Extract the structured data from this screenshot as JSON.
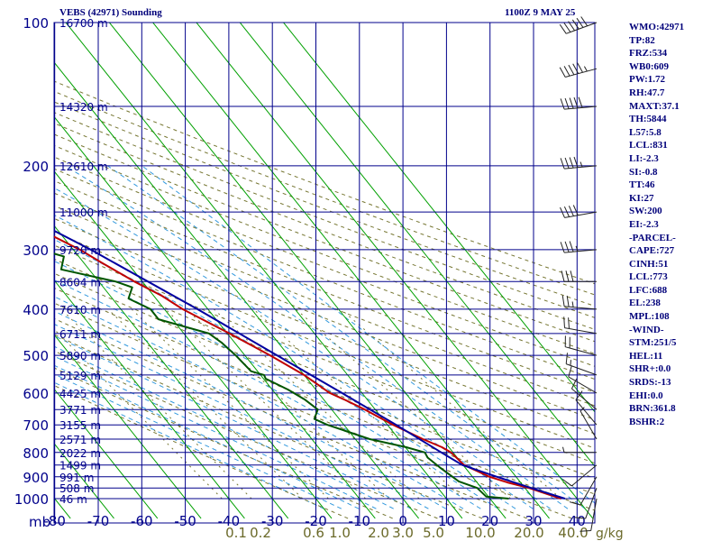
{
  "header": {
    "station": "VEBS (42971) Sounding",
    "time": "1100Z  9 MAY 25"
  },
  "indices": [
    "WMO:42971",
    "TP:82",
    "FRZ:534",
    "WB0:609",
    "PW:1.72",
    "RH:47.7",
    "MAXT:37.1",
    "TH:5844",
    "L57:5.8",
    "LCL:831",
    "LI:-2.3",
    "SI:-0.8",
    "TT:46",
    "KI:27",
    "SW:200",
    "EI:-2.3",
    "-PARCEL-",
    "CAPE:727",
    "CINH:51",
    "LCL:773",
    "LFC:688",
    "EL:238",
    "MPL:108",
    "-WIND-",
    "STM:251/5",
    "HEL:11",
    "SHR+:0.0",
    "SRDS:-13",
    "EHI:0.0",
    "BRN:361.8",
    "BSHR:2"
  ],
  "chart_data": {
    "type": "line",
    "title": "VEBS (42971) Sounding",
    "subtitle": "1100Z  9 MAY 25",
    "xlabel": "",
    "ylabel": "mb",
    "x_ticks": [
      "-80",
      "-70",
      "-60",
      "-50",
      "-40",
      "-30",
      "-20",
      "-10",
      "0",
      "10",
      "20",
      "30",
      "40"
    ],
    "y_ticks": [
      "100",
      "200",
      "300",
      "400",
      "500",
      "600",
      "700",
      "800",
      "900",
      "1000"
    ],
    "height_labels": [
      {
        "p": 100,
        "label": "16700 m"
      },
      {
        "p": 150,
        "label": "14320 m"
      },
      {
        "p": 200,
        "label": "12610 m"
      },
      {
        "p": 250,
        "label": "11000 m"
      },
      {
        "p": 300,
        "label": "9720 m"
      },
      {
        "p": 350,
        "label": "8604 m"
      },
      {
        "p": 400,
        "label": "7610 m"
      },
      {
        "p": 450,
        "label": "6711 m"
      },
      {
        "p": 500,
        "label": "5890 m"
      },
      {
        "p": 550,
        "label": "5129 m"
      },
      {
        "p": 600,
        "label": "4425 m"
      },
      {
        "p": 650,
        "label": "3771 m"
      },
      {
        "p": 700,
        "label": "3155 m"
      },
      {
        "p": 750,
        "label": "2571 m"
      },
      {
        "p": 800,
        "label": "2022 m"
      },
      {
        "p": 850,
        "label": "1499 m"
      },
      {
        "p": 900,
        "label": "991 m"
      },
      {
        "p": 950,
        "label": "508 m"
      },
      {
        "p": 1000,
        "label": "46 m"
      }
    ],
    "mixing_ratio_labels": [
      "0.1",
      "0.2",
      "0.6",
      "1.0",
      "2.0",
      "3.0",
      "5.0",
      "10.0",
      "20.0",
      "40.0"
    ],
    "mixing_ratio_unit": "g/kg",
    "series": [
      {
        "role": "temperature",
        "color": "#c00000",
        "points": [
          [
            1000,
            36.3
          ],
          [
            950,
            30.9
          ],
          [
            925,
            27.0
          ],
          [
            900,
            23.9
          ],
          [
            850,
            20.2
          ],
          [
            800,
            19.5
          ],
          [
            780,
            18.4
          ],
          [
            750,
            15.5
          ],
          [
            700,
            11.3
          ],
          [
            650,
            7.6
          ],
          [
            620,
            4.8
          ],
          [
            600,
            2.6
          ],
          [
            580,
            1.6
          ],
          [
            550,
            0.0
          ],
          [
            500,
            -4.2
          ],
          [
            450,
            -9.5
          ],
          [
            400,
            -15.8
          ],
          [
            375,
            -18.1
          ],
          [
            350,
            -21.8
          ],
          [
            320,
            -25.8
          ],
          [
            300,
            -28.5
          ],
          [
            250,
            -38.7
          ],
          [
            200,
            -49.0
          ],
          [
            150,
            -62.8
          ],
          [
            125,
            -70.6
          ],
          [
            100,
            -81.0
          ]
        ]
      },
      {
        "role": "dewpoint",
        "color": "#005500",
        "points": [
          [
            1000,
            24.3
          ],
          [
            990,
            19.5
          ],
          [
            950,
            19.0
          ],
          [
            920,
            16.0
          ],
          [
            860,
            14.2
          ],
          [
            820,
            13.2
          ],
          [
            800,
            13.5
          ],
          [
            780,
            10.2
          ],
          [
            750,
            3.3
          ],
          [
            700,
            -3.8
          ],
          [
            680,
            -5.7
          ],
          [
            650,
            -3.2
          ],
          [
            620,
            -4.3
          ],
          [
            590,
            -6.4
          ],
          [
            560,
            -9.5
          ],
          [
            550,
            -9.2
          ],
          [
            540,
            -11.5
          ],
          [
            500,
            -12.1
          ],
          [
            470,
            -13.0
          ],
          [
            450,
            -14.2
          ],
          [
            420,
            -23.2
          ],
          [
            400,
            -23.2
          ],
          [
            380,
            -26.3
          ],
          [
            360,
            -23.4
          ],
          [
            350,
            -26.1
          ],
          [
            330,
            -36.4
          ],
          [
            310,
            -33.4
          ],
          [
            300,
            -37.6
          ],
          [
            250,
            -49.6
          ],
          [
            200,
            -64.0
          ],
          [
            150,
            -83.0
          ],
          [
            125,
            -88.0
          ],
          [
            100,
            -98.0
          ]
        ]
      },
      {
        "role": "parcel",
        "color": "#0000a0",
        "points": [
          [
            1000,
            37.2
          ],
          [
            950,
            31.4
          ],
          [
            900,
            25.6
          ],
          [
            850,
            19.8
          ],
          [
            800,
            17.3
          ],
          [
            700,
            12.0
          ],
          [
            600,
            5.4
          ],
          [
            500,
            -2.6
          ],
          [
            400,
            -12.4
          ],
          [
            300,
            -26.0
          ],
          [
            250,
            -35.8
          ],
          [
            200,
            -48.2
          ],
          [
            150,
            -65.0
          ],
          [
            100,
            -88.0
          ]
        ]
      }
    ],
    "wind_barbs": [
      {
        "p": 100,
        "dir": 250,
        "spd": 60
      },
      {
        "p": 125,
        "dir": 255,
        "spd": 55
      },
      {
        "p": 150,
        "dir": 265,
        "spd": 50
      },
      {
        "p": 200,
        "dir": 265,
        "spd": 45
      },
      {
        "p": 250,
        "dir": 260,
        "spd": 40
      },
      {
        "p": 300,
        "dir": 265,
        "spd": 35
      },
      {
        "p": 350,
        "dir": 270,
        "spd": 30
      },
      {
        "p": 400,
        "dir": 275,
        "spd": 25
      },
      {
        "p": 450,
        "dir": 280,
        "spd": 20
      },
      {
        "p": 500,
        "dir": 285,
        "spd": 20
      },
      {
        "p": 550,
        "dir": 290,
        "spd": 15
      },
      {
        "p": 600,
        "dir": 300,
        "spd": 10
      },
      {
        "p": 650,
        "dir": 310,
        "spd": 10
      },
      {
        "p": 700,
        "dir": 320,
        "spd": 10
      },
      {
        "p": 750,
        "dir": 330,
        "spd": 5
      },
      {
        "p": 800,
        "dir": 270,
        "spd": 5
      },
      {
        "p": 850,
        "dir": 230,
        "spd": 10
      },
      {
        "p": 900,
        "dir": 210,
        "spd": 10
      },
      {
        "p": 950,
        "dir": 200,
        "spd": 10
      },
      {
        "p": 1000,
        "dir": 190,
        "spd": 10
      }
    ],
    "colors": {
      "grid": "#00008b",
      "isotherm": "#00a000",
      "dry_adiabat": "#777733",
      "moist_adiabat": "#3399dd",
      "text": "#00007a"
    }
  }
}
